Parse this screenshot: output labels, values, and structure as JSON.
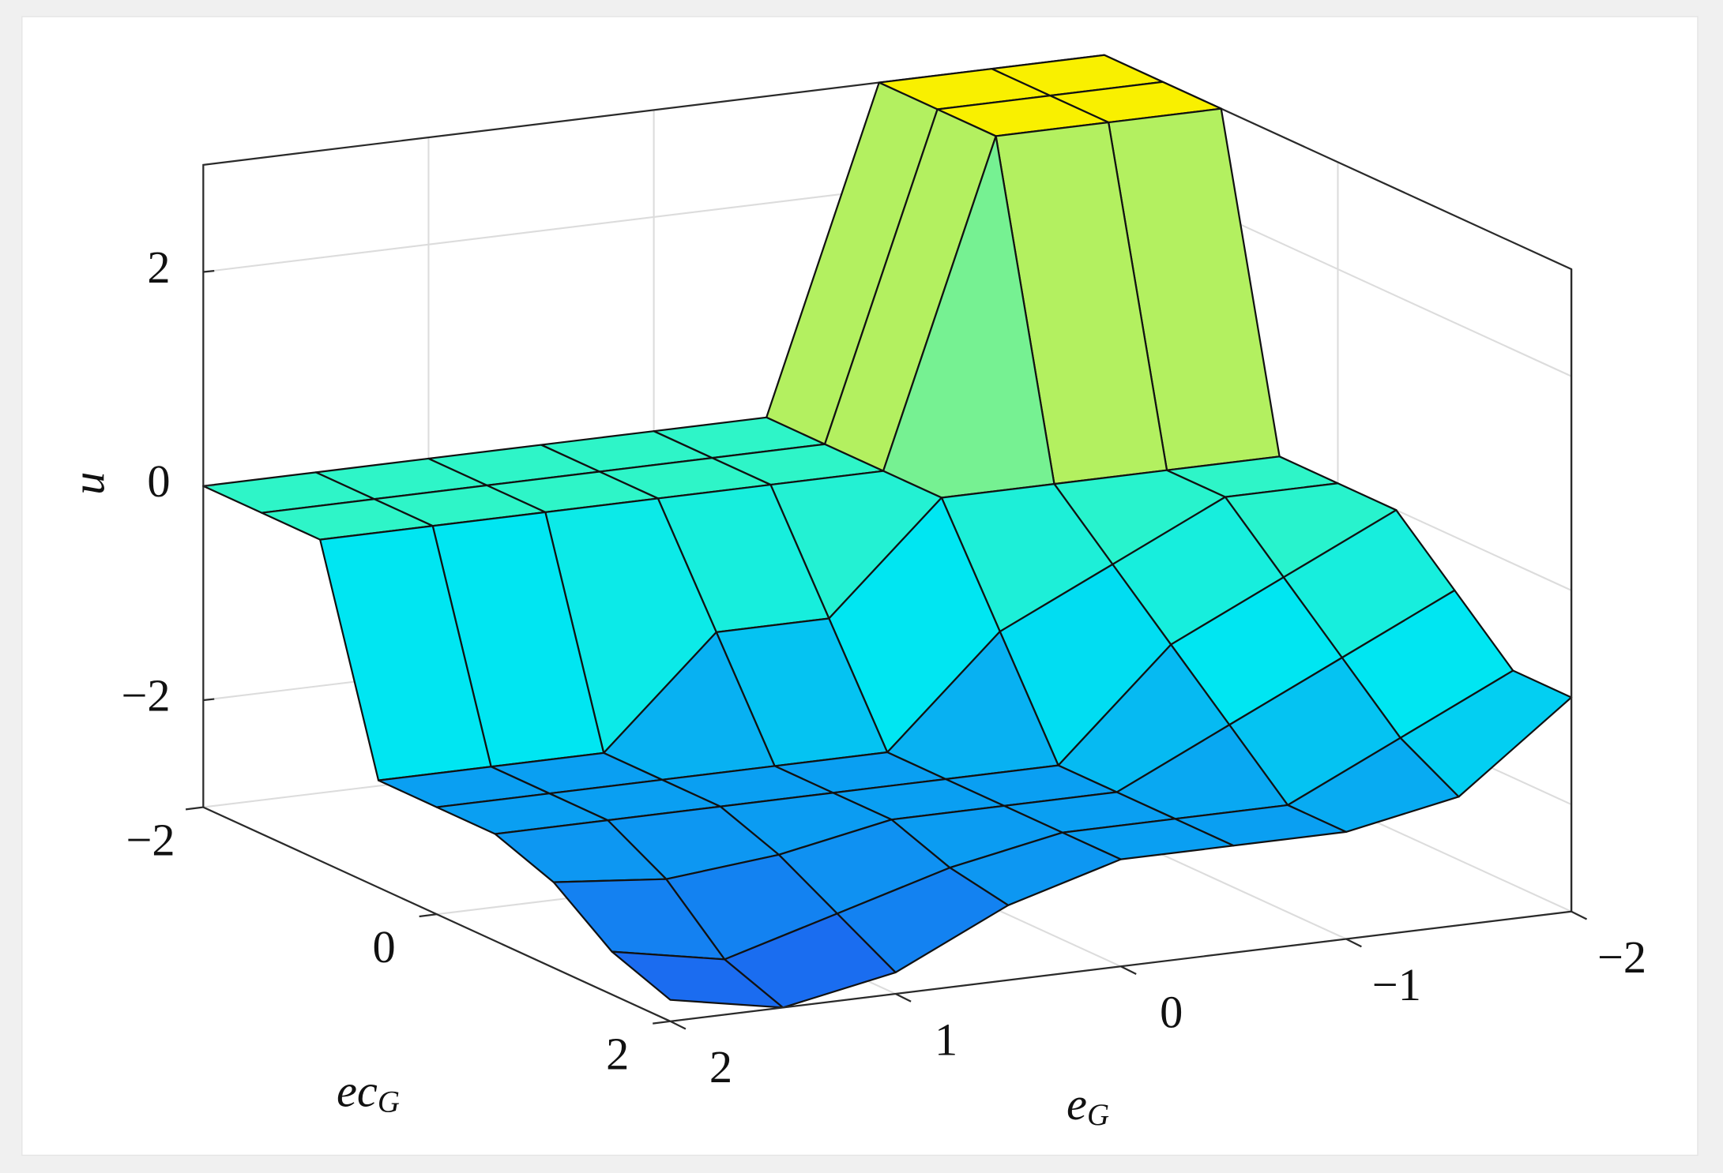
{
  "chart_data": {
    "type": "surface",
    "x_name": "e",
    "x_sub": "G",
    "y_name": "ec",
    "y_sub": "G",
    "z_name": "u",
    "x": [
      -2,
      -1.5,
      -1,
      -0.5,
      0,
      0.5,
      1,
      1.5,
      2
    ],
    "y": [
      -2,
      -1.5,
      -1,
      -0.5,
      0,
      0.5,
      1,
      1.5,
      2
    ],
    "z": [
      [
        3,
        3,
        3,
        0,
        0,
        0,
        0,
        0,
        0
      ],
      [
        3,
        3,
        3,
        0,
        0,
        0,
        0,
        0,
        0
      ],
      [
        3,
        3,
        3,
        0,
        0,
        0,
        0,
        0,
        0
      ],
      [
        0,
        0,
        0,
        0,
        -1,
        -1,
        -2,
        -2,
        -2
      ],
      [
        0,
        0,
        -0.5,
        -1,
        -2,
        -2,
        -2,
        -2,
        -2
      ],
      [
        0,
        -0.5,
        -1,
        -2,
        -2,
        -2,
        -2,
        -2,
        -2
      ],
      [
        -0.5,
        -1,
        -1.5,
        -2,
        -2,
        -2,
        -2.2,
        -2.3,
        -2.2
      ],
      [
        -1,
        -1.5,
        -2,
        -2,
        -2,
        -2.2,
        -2.5,
        -2.8,
        -2.6
      ],
      [
        -1,
        -1.8,
        -2,
        -2,
        -2,
        -2.3,
        -2.8,
        -3,
        -2.8
      ]
    ],
    "xlim": [
      -2,
      2
    ],
    "ylim": [
      -2,
      2
    ],
    "zlim": [
      -3,
      3
    ],
    "xticks": [
      {
        "value": 2,
        "label": "2"
      },
      {
        "value": 1,
        "label": "1"
      },
      {
        "value": 0,
        "label": "0"
      },
      {
        "value": -1,
        "label": "−1"
      },
      {
        "value": -2,
        "label": "−2"
      }
    ],
    "yticks": [
      {
        "value": -2,
        "label": "−2"
      },
      0,
      2
    ],
    "zticks": [
      {
        "value": -2,
        "label": "−2"
      },
      0,
      2
    ],
    "grid": true,
    "colormap": [
      "#1f5ff0",
      "#0a9ff2",
      "#00e6f2",
      "#2ef5c8",
      "#8ef080",
      "#d8f040",
      "#f9f000"
    ]
  }
}
